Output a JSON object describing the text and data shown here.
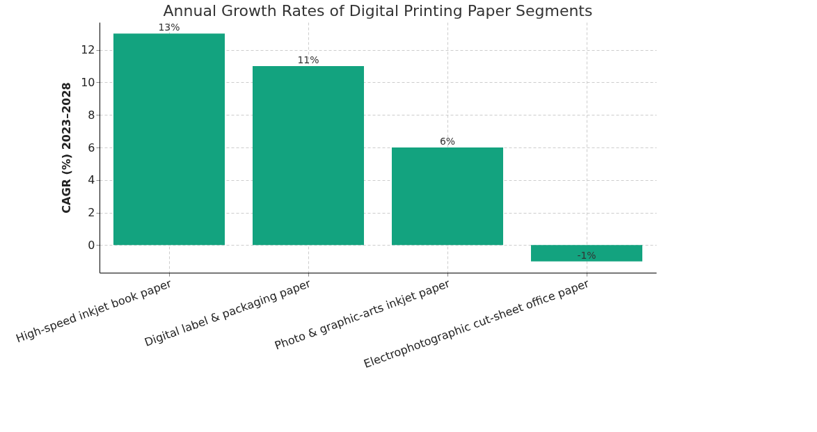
{
  "chart_data": {
    "type": "bar",
    "title": "Annual Growth Rates of Digital Printing Paper Segments",
    "ylabel": "CAGR (%) 2023–2028",
    "categories": [
      "High-speed inkjet book paper",
      "Digital label & packaging paper",
      "Photo & graphic-arts inkjet paper",
      "Electrophotographic cut-sheet office paper"
    ],
    "values": [
      13,
      11,
      6,
      -1
    ],
    "value_labels": [
      "13%",
      "11%",
      "6%",
      "-1%"
    ],
    "color": "#13a37f",
    "ylim": [
      -1.7,
      13.7
    ],
    "yticks": [
      0,
      2,
      4,
      6,
      8,
      10,
      12
    ],
    "grid": true
  }
}
